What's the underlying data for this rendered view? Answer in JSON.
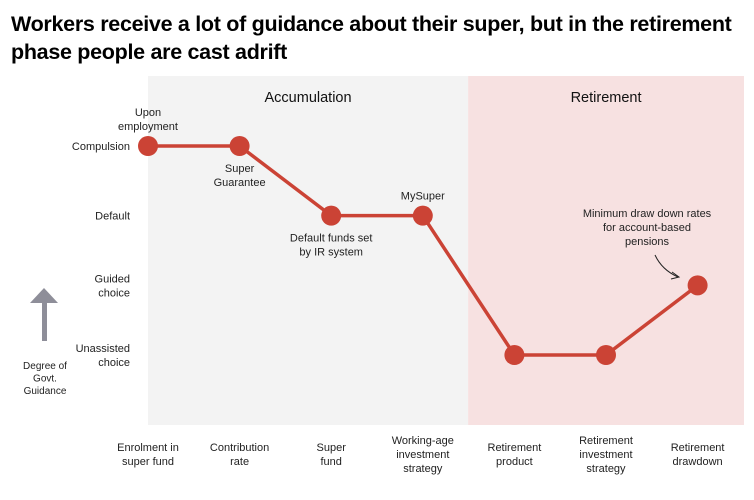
{
  "chart_data": {
    "type": "line",
    "title": "Workers receive a lot of guidance about their super, but in the retirement phase people are cast adrift",
    "ylabel": "Degree of Govt. Guidance",
    "y_levels": [
      {
        "value": 1,
        "label": [
          "Unassisted",
          "choice"
        ]
      },
      {
        "value": 2,
        "label": [
          "Guided",
          "choice"
        ]
      },
      {
        "value": 3,
        "label": [
          "Default"
        ]
      },
      {
        "value": 4,
        "label": [
          "Compulsion"
        ]
      }
    ],
    "ylim": [
      0,
      5
    ],
    "categories": [
      [
        "Enrolment in",
        "super fund"
      ],
      [
        "Contribution",
        "rate"
      ],
      [
        "Super",
        "fund"
      ],
      [
        "Working-age",
        "investment",
        "strategy"
      ],
      [
        "Retirement",
        "product"
      ],
      [
        "Retirement",
        "investment",
        "strategy"
      ],
      [
        "Retirement",
        "drawdown"
      ]
    ],
    "values": [
      4,
      4,
      3,
      3,
      1,
      1,
      2
    ],
    "point_annotations": [
      {
        "index": 0,
        "position": "above",
        "lines": [
          "Upon",
          "employment"
        ]
      },
      {
        "index": 1,
        "position": "below",
        "lines": [
          "Super",
          "Guarantee"
        ]
      },
      {
        "index": 2,
        "position": "below",
        "lines": [
          "Default funds set",
          "by IR system"
        ]
      },
      {
        "index": 3,
        "position": "above",
        "lines": [
          "MySuper"
        ]
      },
      {
        "index": 6,
        "position": "above-left-arrow",
        "lines": [
          "Minimum draw down rates",
          "for account-based",
          "pensions"
        ]
      }
    ],
    "regions": [
      {
        "label": "Accumulation",
        "from_index": 0,
        "to_index": 3,
        "color": "#f3f3f3"
      },
      {
        "label": "Retirement",
        "from_index": 4,
        "to_index": 6,
        "color": "#f7e1e1"
      }
    ],
    "line_color": "#cb4335",
    "arrow_color": "#8e8e99",
    "grid": false,
    "legend": "none"
  }
}
